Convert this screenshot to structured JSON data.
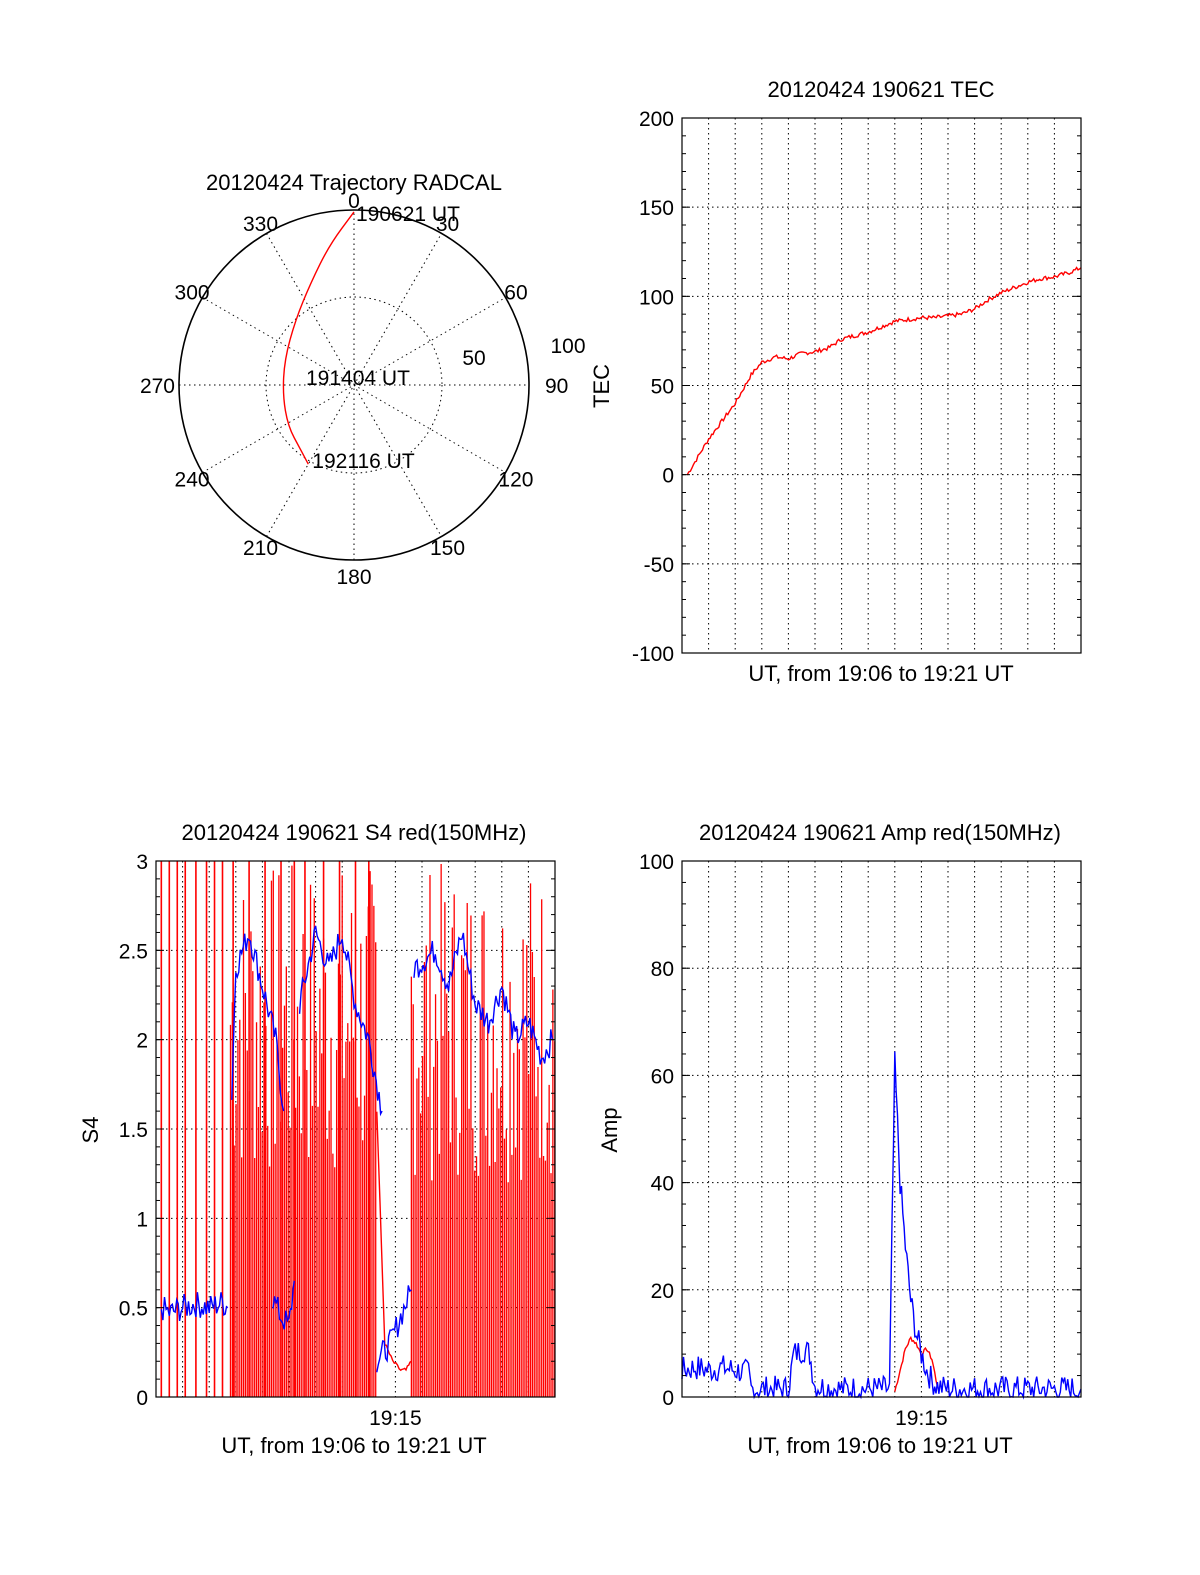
{
  "figure": {
    "panels": [
      "polar",
      "tec",
      "s4",
      "amp"
    ]
  },
  "chart_data": [
    {
      "id": "polar",
      "type": "polar",
      "title": "20120424 Trajectory RADCAL",
      "angle_labels": [
        "0",
        "30",
        "60",
        "90",
        "120",
        "150",
        "180",
        "210",
        "240",
        "270",
        "300",
        "330"
      ],
      "radius_labels": [
        "50",
        "100"
      ],
      "grid": true,
      "series": [
        {
          "color": "#ff0000",
          "points": [
            {
              "az": 0,
              "el": 1
            },
            {
              "az": 350,
              "el": 17
            },
            {
              "az": 337,
              "el": 33
            },
            {
              "az": 318,
              "el": 45
            },
            {
              "az": 290,
              "el": 52
            },
            {
              "az": 262,
              "el": 53
            },
            {
              "az": 238,
              "el": 50
            },
            {
              "az": 220,
              "el": 47
            },
            {
              "az": 210,
              "el": 43
            }
          ]
        }
      ],
      "annotations": [
        {
          "text": "190621 UT",
          "az": 0,
          "el": 1
        },
        {
          "text": "191404 UT",
          "az": 270,
          "el": 90
        },
        {
          "text": "192116 UT",
          "az": 210,
          "el": 43
        }
      ]
    },
    {
      "id": "tec",
      "type": "line",
      "title": "20120424 190621 TEC",
      "xlabel": "UT, from 19:06 to 19:21 UT",
      "ylabel": "TEC",
      "xlim": [
        0,
        15
      ],
      "ylim": [
        -100,
        200
      ],
      "yticks": [
        "-100",
        "-50",
        "0",
        "50",
        "100",
        "150",
        "200"
      ],
      "grid": true,
      "series": [
        {
          "color": "#ff0000",
          "x": [
            0.2,
            0.6,
            1.0,
            1.5,
            2.0,
            2.6,
            3.0,
            3.5,
            4.0,
            4.5,
            5.0,
            5.5,
            6.0,
            6.5,
            7.0,
            7.5,
            8.0,
            8.5,
            9.0,
            9.5,
            10.0,
            10.5,
            11.0,
            11.5,
            12.0,
            12.5,
            13.0,
            13.5,
            14.0,
            14.5,
            15.0
          ],
          "y": [
            0,
            10,
            20,
            30,
            40,
            56,
            63,
            66,
            65,
            68,
            69,
            71,
            76,
            78,
            80,
            83,
            86,
            87,
            88,
            88,
            89,
            90,
            93,
            98,
            102,
            105,
            108,
            110,
            111,
            113,
            116
          ]
        }
      ]
    },
    {
      "id": "s4",
      "type": "line",
      "title": "20120424 190621 S4 red(150MHz)",
      "xlabel": "UT, from 19:06 to 19:21 UT",
      "ylabel": "S4",
      "xlim": [
        0,
        15
      ],
      "ylim": [
        0,
        3
      ],
      "xticks": [
        {
          "x": 9.0,
          "label": "19:15"
        }
      ],
      "yticks": [
        "0",
        "0.5",
        "1",
        "1.5",
        "2",
        "2.5",
        "3"
      ],
      "grid": true,
      "series": [
        {
          "color": "#ff0000",
          "spikes": [
            0.2,
            0.5,
            0.8,
            1.1,
            1.5,
            1.9,
            2.2,
            2.5,
            2.9,
            3.5,
            4.1,
            4.7,
            5.2,
            5.6,
            6.3,
            6.9,
            7.5,
            8.0
          ],
          "dense_ranges": [
            [
              2.8,
              8.3
            ],
            [
              9.6,
              15.0
            ]
          ],
          "segments": [
            {
              "x": [
                8.3,
                8.6,
                8.9,
                9.2,
                9.4,
                9.6
              ],
              "y": [
                1.6,
                0.3,
                0.2,
                0.15,
                0.15,
                0.2
              ]
            }
          ]
        },
        {
          "color": "#0000ff",
          "segments": [
            {
              "x": [
                0.2,
                0.5,
                1.0,
                1.5,
                2.0,
                2.5,
                2.7
              ],
              "y": [
                0.5,
                0.47,
                0.5,
                0.52,
                0.5,
                0.53,
                0.5
              ]
            },
            {
              "x": [
                2.85,
                3.0,
                3.5,
                4.0,
                4.5,
                4.8
              ],
              "y": [
                1.7,
                2.4,
                2.6,
                2.3,
                2.0,
                1.6
              ]
            },
            {
              "x": [
                4.4,
                4.7,
                5.0,
                5.2
              ],
              "y": [
                0.55,
                0.45,
                0.4,
                0.65
              ]
            },
            {
              "x": [
                5.4,
                6.0,
                6.5,
                7.0,
                7.5,
                8.0,
                8.5
              ],
              "y": [
                2.2,
                2.6,
                2.4,
                2.6,
                2.2,
                2.0,
                1.6
              ]
            },
            {
              "x": [
                8.3,
                8.8,
                9.2,
                9.6
              ],
              "y": [
                0.2,
                0.3,
                0.45,
                0.6
              ]
            },
            {
              "x": [
                9.7,
                10.5,
                11.0,
                11.5,
                12.0,
                12.5,
                13.0,
                13.5,
                14.0,
                14.5,
                14.9
              ],
              "y": [
                2.4,
                2.5,
                2.3,
                2.6,
                2.2,
                2.1,
                2.3,
                2.0,
                2.1,
                1.9,
                2.0
              ]
            }
          ]
        }
      ]
    },
    {
      "id": "amp",
      "type": "line",
      "title": "20120424 190621 Amp red(150MHz)",
      "xlabel": "UT, from 19:06 to 19:21 UT",
      "ylabel": "Amp",
      "xlim": [
        0,
        15
      ],
      "ylim": [
        0,
        100
      ],
      "xticks": [
        {
          "x": 9.0,
          "label": "19:15"
        }
      ],
      "yticks": [
        "0",
        "20",
        "40",
        "60",
        "80",
        "100"
      ],
      "grid": true,
      "series": [
        {
          "color": "#ff0000",
          "x": [
            8.0,
            8.2,
            8.4,
            8.6,
            8.8,
            9.0,
            9.2,
            9.4,
            9.6
          ],
          "y": [
            1,
            5,
            9,
            11,
            10,
            8,
            9,
            7,
            2
          ]
        },
        {
          "color": "#0000ff",
          "x": [
            0.0,
            0.5,
            1.0,
            1.5,
            2.0,
            2.5,
            2.6,
            3.0,
            4.0,
            4.2,
            4.6,
            4.8,
            5.0,
            6.0,
            7.0,
            7.8,
            8.0,
            8.2,
            8.4,
            8.6,
            8.8,
            9.0,
            9.2,
            9.4,
            9.6,
            10.0,
            11.0,
            12.0,
            13.0,
            14.0,
            15.0
          ],
          "y": [
            5,
            5.5,
            5,
            5.5,
            5,
            4.5,
            1.5,
            1.5,
            1.5,
            8,
            9,
            8,
            2,
            1.5,
            1.5,
            1.5,
            62,
            40,
            28,
            18,
            12,
            8,
            5,
            3,
            2,
            1.5,
            1.5,
            1.5,
            1.5,
            1.5,
            1.5
          ]
        }
      ]
    }
  ]
}
